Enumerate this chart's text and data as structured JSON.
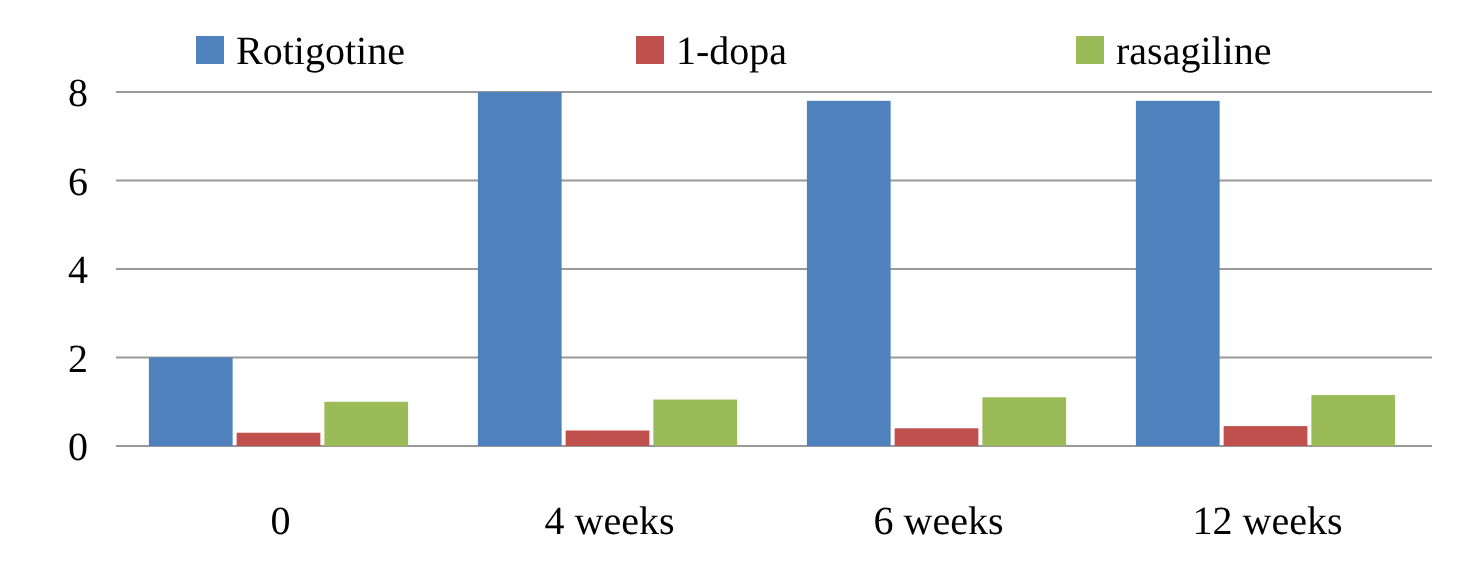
{
  "chart_data": {
    "type": "bar",
    "categories": [
      "0",
      "4 weeks",
      "6 weeks",
      "12 weeks"
    ],
    "series": [
      {
        "name": "Rotigotine",
        "color": "#4f81bd",
        "values": [
          2,
          8,
          7.8,
          7.8
        ]
      },
      {
        "name": "1-dopa",
        "color": "#c0504d",
        "values": [
          0.3,
          0.35,
          0.4,
          0.45
        ]
      },
      {
        "name": "rasagiline",
        "color": "#9bbb59",
        "values": [
          1,
          1.05,
          1.1,
          1.15
        ]
      }
    ],
    "ylim": [
      0,
      8
    ],
    "yticks": [
      0,
      2,
      4,
      6,
      8
    ],
    "grid": "y",
    "legend": "top"
  }
}
